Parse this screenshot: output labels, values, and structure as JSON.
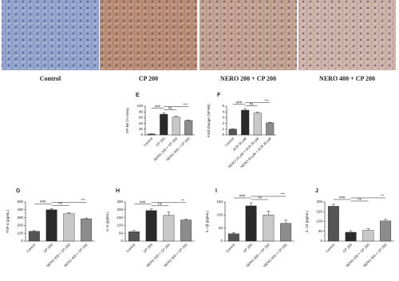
{
  "figure_panels": [
    {
      "label": "Control",
      "color": "#8fa3cc"
    },
    {
      "label": "CP 200",
      "color": "#b98b72"
    },
    {
      "label": "NERO 200 + CP 200",
      "color": "#c2a08f"
    },
    {
      "label": "NERO 400 + CP 200",
      "color": "#cdb0a6"
    }
  ],
  "chart_data": [
    {
      "type": "bar",
      "title": "E",
      "y_label": "NF-kB (% Area)",
      "categories": [
        "Control",
        "CP 200",
        "NERO 200 + CP 200",
        "NERO 400 + CP 200"
      ],
      "values": [
        3,
        72,
        62,
        50
      ],
      "errors": [
        1,
        4,
        3,
        2
      ],
      "colors": [
        "#555555",
        "#2a2a2a",
        "#c8c8c8",
        "#8c8c8c"
      ],
      "ylim": [
        0,
        100
      ],
      "yticks": [
        0,
        20,
        40,
        60,
        80,
        100
      ],
      "annotations": [
        {
          "text": "###",
          "from": 0,
          "to": 1
        },
        {
          "text": "ns",
          "from": 1,
          "to": 2
        },
        {
          "text": "***",
          "from": 1,
          "to": 3
        }
      ]
    },
    {
      "type": "bar",
      "title": "F",
      "y_label": "Fold change (NF-kB)",
      "categories": [
        "Control",
        "ACB 30 μM",
        "NERO 25 μM + ACB 30 μM",
        "NERO 50 μM + ACB 30 μM"
      ],
      "values": [
        1,
        4.3,
        3.8,
        2.1
      ],
      "errors": [
        0.05,
        0.2,
        0.2,
        0.1
      ],
      "colors": [
        "#555555",
        "#2a2a2a",
        "#c8c8c8",
        "#8c8c8c"
      ],
      "ylim": [
        0,
        5
      ],
      "yticks": [
        0,
        1,
        2,
        3,
        4,
        5
      ],
      "annotations": [
        {
          "text": "###",
          "from": 0,
          "to": 1
        },
        {
          "text": "ns",
          "from": 1,
          "to": 2
        },
        {
          "text": "***",
          "from": 1,
          "to": 3
        }
      ]
    },
    {
      "type": "bar",
      "title": "G",
      "y_label": "TNF-α (pg/mL)",
      "categories": [
        "Control",
        "CP 200",
        "NERO 200 + CP 200",
        "NERO 400 + CP 200"
      ],
      "values": [
        125,
        400,
        350,
        285
      ],
      "errors": [
        8,
        15,
        12,
        10
      ],
      "colors": [
        "#555555",
        "#2a2a2a",
        "#c8c8c8",
        "#8c8c8c"
      ],
      "ylim": [
        0,
        500
      ],
      "yticks": [
        0,
        100,
        200,
        300,
        400,
        500
      ],
      "annotations": [
        {
          "text": "###",
          "from": 0,
          "to": 1
        },
        {
          "text": "ns",
          "from": 1,
          "to": 2
        },
        {
          "text": "***",
          "from": 1,
          "to": 3
        }
      ]
    },
    {
      "type": "bar",
      "title": "H",
      "y_label": "IL-6 (pg/mL)",
      "categories": [
        "Control",
        "CP 200",
        "NERO 200 + CP 200",
        "NERO 400 + CP 200"
      ],
      "values": [
        60,
        195,
        165,
        135
      ],
      "errors": [
        8,
        10,
        20,
        6
      ],
      "colors": [
        "#555555",
        "#2a2a2a",
        "#c8c8c8",
        "#8c8c8c"
      ],
      "ylim": [
        0,
        250
      ],
      "yticks": [
        0,
        50,
        100,
        150,
        200,
        250
      ],
      "annotations": [
        {
          "text": "###",
          "from": 0,
          "to": 1
        },
        {
          "text": "ns",
          "from": 1,
          "to": 2
        },
        {
          "text": "**",
          "from": 1,
          "to": 3
        }
      ]
    },
    {
      "type": "bar",
      "title": "I",
      "y_label": "IL-1β (pg/mL)",
      "categories": [
        "Control",
        "CP 200",
        "NERO 200 + CP 200",
        "NERO 400 + CP 200"
      ],
      "values": [
        28,
        135,
        100,
        68
      ],
      "errors": [
        5,
        12,
        15,
        12
      ],
      "colors": [
        "#555555",
        "#2a2a2a",
        "#c8c8c8",
        "#8c8c8c"
      ],
      "ylim": [
        0,
        150
      ],
      "yticks": [
        0,
        50,
        100,
        150
      ],
      "annotations": [
        {
          "text": "###",
          "from": 0,
          "to": 1
        },
        {
          "text": "ns",
          "from": 1,
          "to": 2
        },
        {
          "text": "***",
          "from": 1,
          "to": 3
        }
      ]
    },
    {
      "type": "bar",
      "title": "J",
      "y_label": "IL-10 (pg/mL)",
      "categories": [
        "Control",
        "CP 200",
        "NERO 200 + CP 200",
        "NERO 400 + CP 200"
      ],
      "values": [
        178,
        45,
        55,
        103
      ],
      "errors": [
        10,
        8,
        8,
        8
      ],
      "colors": [
        "#555555",
        "#2a2a2a",
        "#c8c8c8",
        "#8c8c8c"
      ],
      "ylim": [
        0,
        200
      ],
      "yticks": [
        0,
        50,
        100,
        150,
        200
      ],
      "annotations": [
        {
          "text": "###",
          "from": 0,
          "to": 1
        },
        {
          "text": "ns",
          "from": 1,
          "to": 2
        },
        {
          "text": "**",
          "from": 1,
          "to": 3
        }
      ]
    }
  ]
}
